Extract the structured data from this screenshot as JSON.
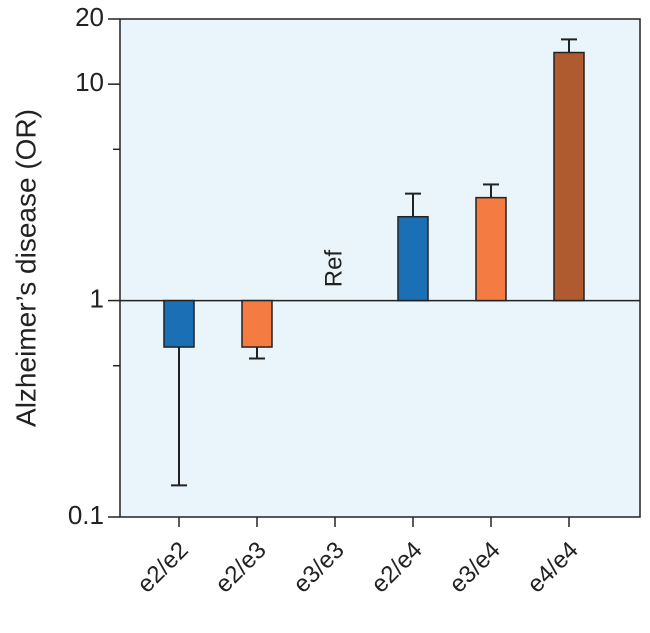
{
  "chart_data": {
    "type": "bar",
    "ylabel": "Alzheimer’s disease (OR)",
    "annotation": "Ref",
    "categories": [
      "e2/e2",
      "e2/e3",
      "e3/e3",
      "e2/e4",
      "e3/e4",
      "e4/e4"
    ],
    "values": [
      0.61,
      0.61,
      null,
      2.44,
      2.99,
      14.0
    ],
    "error_bars": [
      0.14,
      0.54,
      null,
      3.12,
      3.44,
      16.1
    ],
    "colors": [
      "#1a6fb5",
      "#f47b42",
      null,
      "#1a6fb5",
      "#f47b42",
      "#b05a30"
    ],
    "baseline": 1,
    "ylim": [
      0.1,
      20
    ],
    "yticks": [
      0.1,
      1,
      10,
      20
    ],
    "minor_yticks": [
      0.5,
      5
    ],
    "log_scale": true,
    "background": "#eaf4fb"
  }
}
